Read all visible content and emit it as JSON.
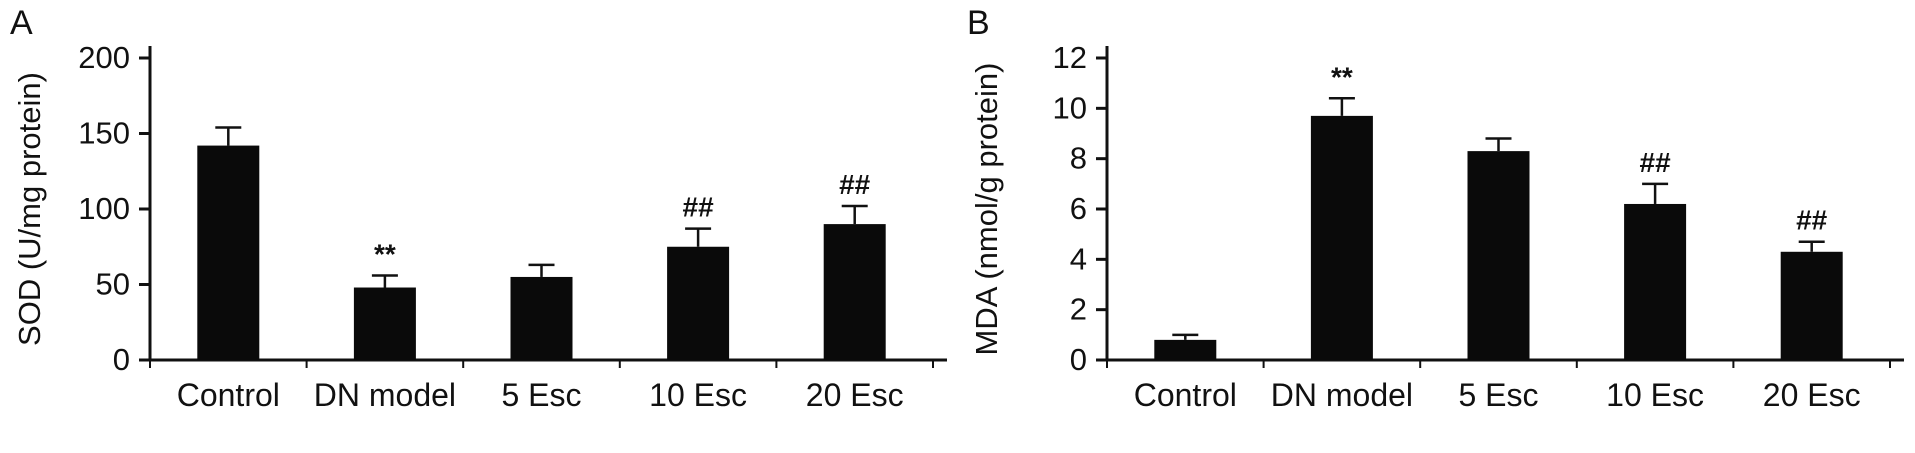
{
  "figure": {
    "background": "#ffffff",
    "bar_color": "#0a0a0a",
    "axis_color": "#111111"
  },
  "chart_data": [
    {
      "panel_label": "A",
      "type": "bar",
      "categories": [
        "Control",
        "DN model",
        "5 Esc",
        "10 Esc",
        "20 Esc"
      ],
      "values": [
        142,
        48,
        55,
        75,
        90
      ],
      "errors": [
        12,
        8,
        8,
        12,
        12
      ],
      "annotations": [
        "",
        "**",
        "",
        "##",
        "##"
      ],
      "ylabel": "SOD (U/mg protein)",
      "xlabel": "",
      "ylim": [
        0,
        200
      ],
      "yticks": [
        0,
        50,
        100,
        150,
        200
      ],
      "grid": false,
      "legend": "none"
    },
    {
      "panel_label": "B",
      "type": "bar",
      "categories": [
        "Control",
        "DN model",
        "5 Esc",
        "10 Esc",
        "20 Esc"
      ],
      "values": [
        0.8,
        9.7,
        8.3,
        6.2,
        4.3
      ],
      "errors": [
        0.2,
        0.7,
        0.5,
        0.8,
        0.4
      ],
      "annotations": [
        "",
        "**",
        "",
        "##",
        "##"
      ],
      "ylabel": "MDA (nmol/g protein)",
      "xlabel": "",
      "ylim": [
        0,
        12
      ],
      "yticks": [
        0,
        2,
        4,
        6,
        8,
        10,
        12
      ],
      "grid": false,
      "legend": "none"
    }
  ]
}
